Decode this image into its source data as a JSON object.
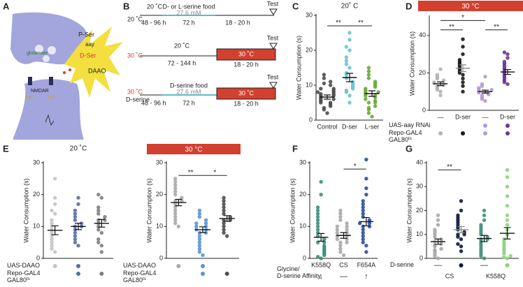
{
  "panel_letters": [
    "A",
    "B",
    "C",
    "D",
    "E",
    "F",
    "G"
  ],
  "panel_a": {
    "glutamate": "glutamate",
    "nmdar": "NMDAR",
    "ca1": "Ca²⁺",
    "ca2": "Ca²⁺",
    "pser": "P-Ser",
    "aay": "aay",
    "dser": "D-Ser",
    "daao": "DAAO"
  },
  "panel_b": {
    "row1": {
      "temp": "20 ˚C",
      "seg_temp": "20 ˚C",
      "food": "D- or L-serine food",
      "conc": "27.6 mM",
      "t1": "48 - 96 h",
      "t2": "72 h",
      "t3": "18 - 20 h",
      "test": "Test"
    },
    "row2": {
      "temp": "30 ˚C",
      "seg_temp": "20 ˚C",
      "hot": "30 ˚C",
      "t1": "72 - 144 h",
      "t3": "18 - 20 h",
      "test": "Test"
    },
    "row3": {
      "temp": "30 ˚C",
      "sub": "D-serine",
      "food": "D-serine food",
      "conc": "27.6 mM",
      "t1": "48 - 96 h",
      "t2": "72 h",
      "t3": "18 - 20 h",
      "hot": "30 ˚C",
      "test": "Test"
    }
  },
  "chart_data": [
    {
      "type": "dotplot",
      "title": "20˚ C",
      "ylabel": "Water Consumption (s)",
      "ylim": [
        0,
        30
      ],
      "yticks": [
        0,
        10,
        20,
        30
      ],
      "groups": [
        {
          "label": "Control",
          "color": "#4d4d4d",
          "mean": 6.6,
          "sem": 0.6,
          "points": [
            2,
            3,
            3.5,
            4,
            4.5,
            5,
            5,
            5.5,
            6,
            6,
            6.5,
            7,
            7,
            7.5,
            7.5,
            8,
            8,
            8.5,
            9,
            9,
            10,
            10.5,
            11,
            12,
            13
          ]
        },
        {
          "label": "D-ser",
          "color": "#6cc3cf",
          "mean": 12.2,
          "sem": 1.2,
          "points": [
            5,
            7,
            8,
            8.5,
            9,
            9.5,
            10,
            10.5,
            11,
            12,
            13,
            13.5,
            15,
            16,
            17,
            18,
            20,
            21,
            23,
            25
          ]
        },
        {
          "label": "L-ser",
          "color": "#6aaa3a",
          "mean": 7.6,
          "sem": 0.8,
          "points": [
            1,
            2,
            3,
            3.5,
            4,
            5,
            5,
            5.5,
            6,
            6.5,
            7,
            7,
            7.5,
            8,
            8,
            8.5,
            9,
            9.5,
            10,
            10.5,
            11,
            12,
            13,
            14,
            15
          ]
        }
      ],
      "brackets": [
        {
          "text": "**",
          "from": 0,
          "to": 1,
          "y": 27
        },
        {
          "text": "**",
          "from": 1,
          "to": 2,
          "y": 27
        }
      ]
    },
    {
      "type": "dotplot",
      "banner": "30 °C",
      "ylabel": "Water Consumption (s)",
      "ylim": [
        0,
        50
      ],
      "yticks": [
        0,
        20,
        40
      ],
      "groups": [
        {
          "label": "—",
          "color": "#b3b3b3",
          "mean": 14.2,
          "sem": 1.0,
          "points": [
            8,
            10,
            11,
            12,
            13,
            13.5,
            14,
            14.5,
            15,
            16,
            17,
            18,
            19,
            22
          ]
        },
        {
          "label": "D-ser",
          "color": "#1a1a1a",
          "mean": 22.5,
          "sem": 1.8,
          "points": [
            10,
            13,
            15,
            17,
            19,
            20,
            21,
            22,
            23,
            24,
            25,
            26,
            27,
            30,
            34,
            38
          ]
        },
        {
          "label": "—",
          "color": "#b49ad0",
          "mean": 10,
          "sem": 0.8,
          "points": [
            5,
            6,
            7,
            8,
            8.5,
            9,
            9.5,
            10,
            10.5,
            11,
            11,
            12,
            13,
            14,
            18
          ]
        },
        {
          "label": "D-ser",
          "color": "#6a3596",
          "mean": 20.5,
          "sem": 1.3,
          "points": [
            14,
            15,
            16,
            17,
            18,
            19,
            20,
            21,
            22,
            23,
            24,
            25,
            26,
            28,
            30,
            31
          ]
        }
      ],
      "rows": [
        {
          "label": "UAS-aay RNAi",
          "dots": [
            false,
            false,
            true,
            true
          ]
        },
        {
          "label": "Repo-GAL4",
          "label2": "GAL80",
          "sup": "ts",
          "dots": [
            true,
            true,
            true,
            true
          ]
        }
      ],
      "brackets": [
        {
          "text": "**",
          "from": 0,
          "to": 1,
          "y": 43
        },
        {
          "text": "*",
          "from": 0,
          "to": 2,
          "y": 48
        },
        {
          "text": "**",
          "from": 2,
          "to": 3,
          "y": 43
        }
      ]
    },
    {
      "type": "dotplot",
      "title": "20 ˚C",
      "ylabel": "Water Consumption (s)",
      "ylim": [
        0,
        30
      ],
      "yticks": [
        0,
        10,
        20,
        30
      ],
      "groups": [
        {
          "color": "#c4c4c4",
          "mean": 8.8,
          "sem": 1.4,
          "points": [
            2,
            3,
            4,
            5,
            6,
            7,
            8,
            9,
            10,
            11,
            12,
            14,
            15,
            17,
            19,
            25
          ]
        },
        {
          "color": "#5a6fa8",
          "mean": 10,
          "sem": 1.0,
          "points": [
            4,
            5,
            6,
            7,
            8,
            9,
            10,
            10,
            11,
            12,
            13,
            14,
            15,
            17,
            19
          ]
        },
        {
          "color": "#7f7f7f",
          "mean": 11,
          "sem": 1.2,
          "points": [
            2,
            4,
            5,
            6,
            8,
            9,
            10,
            11,
            12,
            12,
            13,
            14,
            15,
            16,
            19,
            20
          ]
        }
      ],
      "rows": [
        {
          "label": "UAS-DAAO",
          "dots": [
            true,
            true,
            false
          ]
        },
        {
          "label": "Repo-GAL4",
          "label2": "GAL80",
          "sup": "ts",
          "dots": [
            false,
            true,
            true
          ]
        }
      ]
    },
    {
      "type": "dotplot",
      "banner": "30 °C",
      "ylabel": "Water Consumption (s)",
      "ylim": [
        0,
        30
      ],
      "yticks": [
        0,
        10,
        20,
        30
      ],
      "groups": [
        {
          "color": "#a8a8a8",
          "mean": 17.5,
          "sem": 1.0,
          "points": [
            10,
            11,
            12,
            13,
            14,
            15,
            16,
            17,
            18,
            18,
            19,
            20,
            21,
            22,
            23,
            24,
            25
          ]
        },
        {
          "color": "#5b93d6",
          "mean": 9,
          "sem": 0.9,
          "points": [
            1,
            2,
            3,
            4,
            5,
            6,
            7,
            8,
            8,
            9,
            9,
            10,
            10,
            11,
            11,
            12,
            13,
            14,
            15
          ]
        },
        {
          "color": "#4d4d4d",
          "mean": 12.5,
          "sem": 0.9,
          "points": [
            7,
            8,
            9,
            10,
            11,
            12,
            12,
            13,
            14,
            15,
            16,
            17,
            18,
            19
          ]
        }
      ],
      "rows": [
        {
          "label": "UAS-DAAO",
          "dots": [
            true,
            true,
            false
          ]
        },
        {
          "label": "Repo-GAL4",
          "label2": "GAL80",
          "sup": "ts",
          "dots": [
            false,
            true,
            true
          ]
        }
      ],
      "brackets": [
        {
          "text": "**",
          "from": 0,
          "to": 1,
          "y": 26
        },
        {
          "text": "*",
          "from": 1,
          "to": 2,
          "y": 26
        }
      ]
    },
    {
      "type": "dotplot",
      "ylabel": "Water Consumption (s)",
      "ylim": [
        0,
        30
      ],
      "yticks": [
        0,
        10,
        20,
        30
      ],
      "groups": [
        {
          "label": "K558Q",
          "color": "#3d8f7a",
          "mean": 6.6,
          "sem": 1.2,
          "points": [
            0,
            0.5,
            1,
            1.5,
            2,
            2.5,
            3,
            3.5,
            4,
            5,
            5,
            6,
            7,
            8,
            9,
            10,
            11,
            12,
            13,
            14,
            15,
            16,
            20,
            24
          ]
        },
        {
          "label": "CS",
          "color": "#a8a8a8",
          "mean": 7.2,
          "sem": 0.9,
          "points": [
            1,
            2,
            3,
            4,
            5,
            5,
            6,
            6,
            7,
            7,
            8,
            8,
            9,
            9,
            10,
            10,
            11,
            12,
            13,
            14,
            15
          ]
        },
        {
          "label": "F654A",
          "color": "#2e4fa0",
          "mean": 11.5,
          "sem": 1.3,
          "points": [
            2,
            4,
            5,
            6,
            7,
            8,
            9,
            10,
            10,
            11,
            11,
            12,
            13,
            14,
            15,
            16,
            17,
            18,
            20,
            22,
            25,
            31
          ]
        }
      ],
      "rows": [
        {
          "label": "Glycine/",
          "label2": "D-serine Affinity",
          "texts": [
            "↓",
            "—",
            "↑"
          ]
        }
      ],
      "brackets": [
        {
          "text": "*",
          "from": 1,
          "to": 2,
          "y": 28
        }
      ]
    },
    {
      "type": "dotplot",
      "ylabel": "Water Consumption (s)",
      "ylim": [
        0,
        40
      ],
      "yticks": [
        0,
        10,
        20,
        30,
        40
      ],
      "groups": [
        {
          "color": "#a8a8a8",
          "mean": 7,
          "sem": 1.1,
          "points": [
            0,
            1,
            2,
            3,
            3.5,
            4,
            5,
            5.5,
            6,
            7,
            7,
            8,
            9,
            10,
            11,
            12,
            14,
            16,
            18
          ]
        },
        {
          "color": "#101a3a",
          "mean": 12,
          "sem": 1.3,
          "points": [
            3,
            5,
            6,
            8,
            9,
            10,
            10,
            11,
            12,
            13,
            14,
            15,
            16,
            17,
            18,
            20,
            24
          ]
        },
        {
          "color": "#3d8f7a",
          "mean": 8.3,
          "sem": 1.3,
          "points": [
            0,
            1,
            2,
            3,
            4,
            5,
            6,
            7,
            8,
            8,
            9,
            10,
            11,
            12,
            13,
            14,
            16,
            18,
            20
          ]
        },
        {
          "color": "#8fcf7e",
          "mean": 10.5,
          "sem": 2.4,
          "points": [
            0,
            0.5,
            1,
            2,
            3,
            4,
            5,
            6,
            7,
            8,
            10,
            12,
            14,
            16,
            18,
            22,
            26,
            30,
            34,
            37
          ]
        }
      ],
      "rows": [
        {
          "label": "D-serine",
          "texts": [
            "—",
            null,
            "—",
            null
          ],
          "dots": [
            false,
            true,
            false,
            true
          ]
        }
      ],
      "group_labels": [
        {
          "text": "CS",
          "from": 0,
          "to": 1
        },
        {
          "text": "K558Q",
          "from": 2,
          "to": 3
        }
      ],
      "brackets": [
        {
          "text": "**",
          "from": 0,
          "to": 1,
          "y": 37
        }
      ]
    }
  ]
}
